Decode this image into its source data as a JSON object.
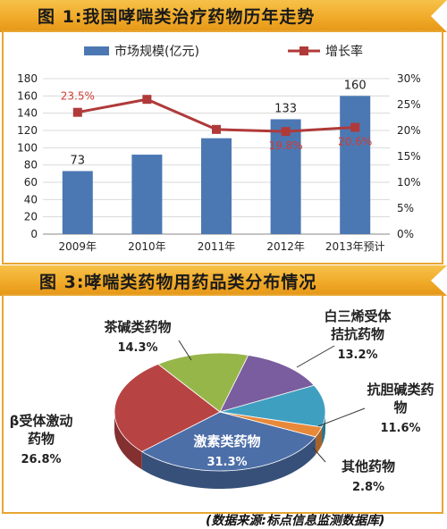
{
  "header1": {
    "title": "图 1:我国哮喘类治疗药物历年走势"
  },
  "header2": {
    "title": "图 3:哮喘类药物用药品类分布情况"
  },
  "chart_data": [
    {
      "type": "bar+line",
      "categories": [
        "2009年",
        "2010年",
        "2011年",
        "2012年",
        "2013年预计"
      ],
      "series": [
        {
          "name": "市场规模(亿元)",
          "type": "bar",
          "axis": "left",
          "color": "#4b78b3",
          "values": [
            73,
            92,
            111,
            133,
            160
          ],
          "labels": [
            "73",
            "",
            "",
            "133",
            "160"
          ]
        },
        {
          "name": "增长率",
          "type": "line",
          "axis": "right",
          "color": "#b03a3a",
          "values": [
            23.5,
            26.0,
            20.2,
            19.8,
            20.6
          ],
          "labels": [
            "23.5%",
            "",
            "",
            "19.8%",
            "20.6%"
          ]
        }
      ],
      "legend": [
        "市场规模(亿元)",
        "增长率"
      ],
      "ylim": [
        0,
        180
      ],
      "yticks": [
        "0",
        "20",
        "40",
        "60",
        "80",
        "100",
        "120",
        "140",
        "160",
        "180"
      ],
      "y2lim": [
        0,
        30
      ],
      "y2ticks": [
        "0%",
        "5%",
        "10%",
        "15%",
        "20%",
        "25%",
        "30%"
      ],
      "grid": true
    },
    {
      "type": "pie",
      "slices": [
        {
          "label": "激素类药物",
          "value": 31.3,
          "pct": "31.3%",
          "color": "#4d6fa8"
        },
        {
          "label": "β受体激动药物",
          "value": 26.8,
          "pct": "26.8%",
          "color": "#b84343"
        },
        {
          "label": "茶碱类药物",
          "value": 14.3,
          "pct": "14.3%",
          "color": "#97b64a"
        },
        {
          "label": "白三烯受体拮抗药物",
          "value": 13.2,
          "pct": "13.2%",
          "color": "#7a5d9e"
        },
        {
          "label": "抗胆碱类药物",
          "value": 11.6,
          "pct": "11.6%",
          "color": "#3f9fc0"
        },
        {
          "label": "其他药物",
          "value": 2.8,
          "pct": "2.8%",
          "color": "#e8893a"
        }
      ]
    }
  ],
  "footer": {
    "source": "(数据来源:标点信息监测数据库)"
  }
}
